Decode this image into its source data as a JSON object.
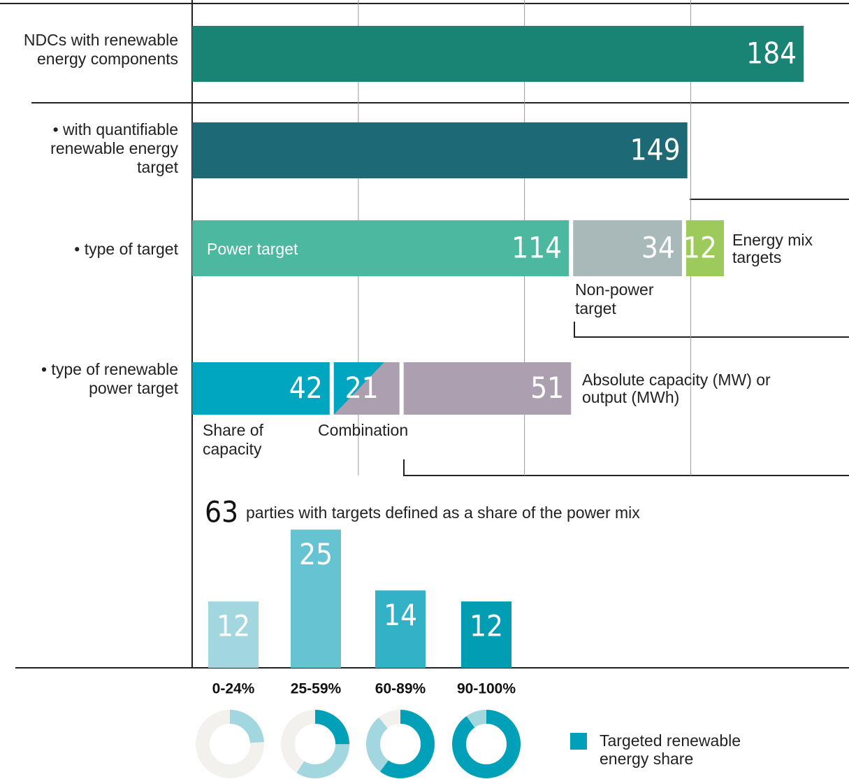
{
  "chart_data": [
    {
      "type": "hbar",
      "xlim": [
        0,
        197
      ],
      "xticks": [
        0,
        50,
        100,
        150
      ],
      "grid": true,
      "rows": [
        {
          "label": "NDCs with renewable energy components",
          "segments": [
            {
              "value": 184,
              "color": "#1a8474"
            }
          ]
        },
        {
          "label": "• with quantifiable renewable energy target",
          "segments": [
            {
              "value": 149,
              "color": "#1d6a76"
            }
          ]
        },
        {
          "label": "• type of target",
          "segments": [
            {
              "name": "Power target",
              "value": 114,
              "color": "#4bb89f"
            },
            {
              "name": "Non-power target",
              "value": 34,
              "color": "#a9b8b8"
            },
            {
              "name": "Energy mix targets",
              "value": 12,
              "color": "#9ccb5b"
            }
          ]
        },
        {
          "label": "• type of renewable power target",
          "segments": [
            {
              "name": "Share of capacity",
              "value": 42,
              "color": "#00a6c0"
            },
            {
              "name": "Combination",
              "value": 21,
              "color": "#00a6c0",
              "color2": "#aca0b0"
            },
            {
              "name": "Absolute capacity (MW) or output (MWh)",
              "value": 51,
              "color": "#aca0b0"
            }
          ]
        }
      ]
    },
    {
      "type": "bar",
      "total": 63,
      "title": "parties with targets defined as a share of the power mix",
      "categories": [
        "0-24%",
        "25-59%",
        "60-89%",
        "90-100%"
      ],
      "values": [
        12,
        25,
        14,
        12
      ],
      "colors": [
        "#a2d7e0",
        "#66c3d2",
        "#33b1c6",
        "#009db3"
      ],
      "ylim": [
        0,
        32
      ]
    },
    {
      "type": "donut",
      "shares": [
        {
          "low": 0,
          "high": 24
        },
        {
          "low": 25,
          "high": 59
        },
        {
          "low": 60,
          "high": 89
        },
        {
          "low": 90,
          "high": 100
        }
      ],
      "color": "#00a0b8",
      "color_range": "#a2d7e0",
      "color_rest": "#f2f1ee",
      "legend": "Targeted renewable energy share"
    }
  ]
}
